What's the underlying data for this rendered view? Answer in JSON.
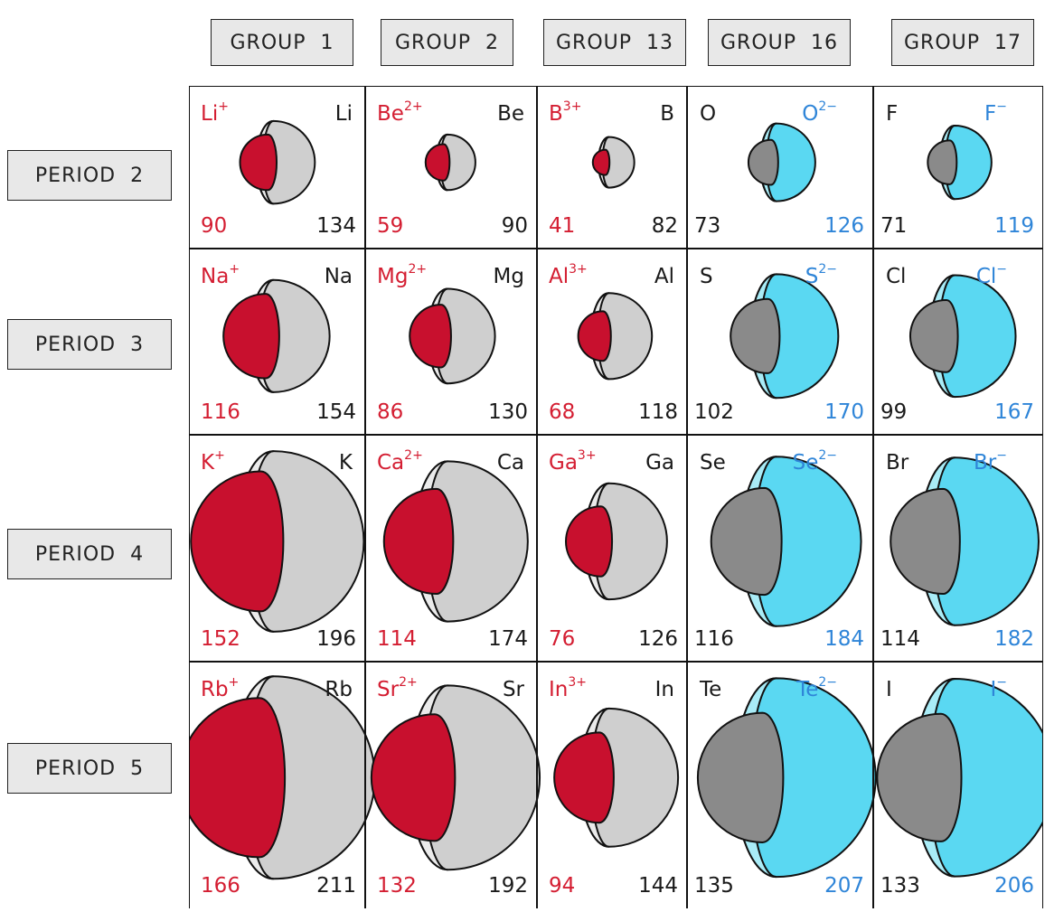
{
  "groups": [
    "GROUP  1",
    "GROUP  2",
    "GROUP  13",
    "GROUP  16",
    "GROUP  17"
  ],
  "periods": [
    "PERIOD  2",
    "PERIOD  3",
    "PERIOD  4",
    "PERIOD  5"
  ],
  "colors": {
    "cation_core": "#c8102e",
    "anion_shell": "#5ad8f2",
    "atom_shell": "#cfcfcf",
    "nonmetal_core": "#8a8a8a",
    "cation_text": "#d41e32",
    "anion_text": "#2f85d8"
  },
  "cells": [
    [
      {
        "ion": "Li",
        "charge": "+",
        "atom": "Li",
        "ion_radius": 90,
        "atom_radius": 134,
        "kind": "cation"
      },
      {
        "ion": "Be",
        "charge": "2+",
        "atom": "Be",
        "ion_radius": 59,
        "atom_radius": 90,
        "kind": "cation"
      },
      {
        "ion": "B",
        "charge": "3+",
        "atom": "B",
        "ion_radius": 41,
        "atom_radius": 82,
        "kind": "cation"
      },
      {
        "ion": "O",
        "charge": "2−",
        "atom": "O",
        "ion_radius": 126,
        "atom_radius": 73,
        "kind": "anion"
      },
      {
        "ion": "F",
        "charge": "−",
        "atom": "F",
        "ion_radius": 119,
        "atom_radius": 71,
        "kind": "anion"
      }
    ],
    [
      {
        "ion": "Na",
        "charge": "+",
        "atom": "Na",
        "ion_radius": 116,
        "atom_radius": 154,
        "kind": "cation"
      },
      {
        "ion": "Mg",
        "charge": "2+",
        "atom": "Mg",
        "ion_radius": 86,
        "atom_radius": 130,
        "kind": "cation"
      },
      {
        "ion": "Al",
        "charge": "3+",
        "atom": "Al",
        "ion_radius": 68,
        "atom_radius": 118,
        "kind": "cation"
      },
      {
        "ion": "S",
        "charge": "2−",
        "atom": "S",
        "ion_radius": 170,
        "atom_radius": 102,
        "kind": "anion"
      },
      {
        "ion": "Cl",
        "charge": "−",
        "atom": "Cl",
        "ion_radius": 167,
        "atom_radius": 99,
        "kind": "anion"
      }
    ],
    [
      {
        "ion": "K",
        "charge": "+",
        "atom": "K",
        "ion_radius": 152,
        "atom_radius": 196,
        "kind": "cation"
      },
      {
        "ion": "Ca",
        "charge": "2+",
        "atom": "Ca",
        "ion_radius": 114,
        "atom_radius": 174,
        "kind": "cation"
      },
      {
        "ion": "Ga",
        "charge": "3+",
        "atom": "Ga",
        "ion_radius": 76,
        "atom_radius": 126,
        "kind": "cation"
      },
      {
        "ion": "Se",
        "charge": "2−",
        "atom": "Se",
        "ion_radius": 184,
        "atom_radius": 116,
        "kind": "anion"
      },
      {
        "ion": "Br",
        "charge": "−",
        "atom": "Br",
        "ion_radius": 182,
        "atom_radius": 114,
        "kind": "anion"
      }
    ],
    [
      {
        "ion": "Rb",
        "charge": "+",
        "atom": "Rb",
        "ion_radius": 166,
        "atom_radius": 211,
        "kind": "cation"
      },
      {
        "ion": "Sr",
        "charge": "2+",
        "atom": "Sr",
        "ion_radius": 132,
        "atom_radius": 192,
        "kind": "cation"
      },
      {
        "ion": "In",
        "charge": "3+",
        "atom": "In",
        "ion_radius": 94,
        "atom_radius": 144,
        "kind": "cation"
      },
      {
        "ion": "Te",
        "charge": "2−",
        "atom": "Te",
        "ion_radius": 207,
        "atom_radius": 135,
        "kind": "anion"
      },
      {
        "ion": "I",
        "charge": "−",
        "atom": "I",
        "ion_radius": 206,
        "atom_radius": 133,
        "kind": "anion"
      }
    ]
  ]
}
